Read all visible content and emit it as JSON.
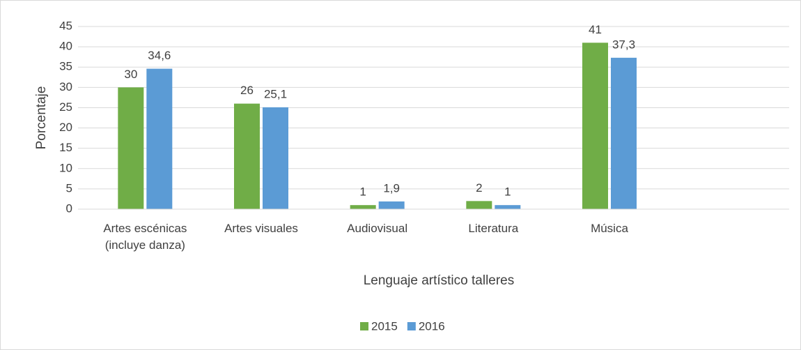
{
  "chart_data": {
    "type": "bar",
    "x_label": "Lenguaje artístico talleres",
    "y_label": "Porcentaje",
    "categories": [
      "Artes escénicas (incluye danza)",
      "Artes visuales",
      "Audiovisual",
      "Literatura",
      "Música",
      null
    ],
    "series": [
      {
        "name": "2015",
        "color": "#70ad47",
        "values": [
          30,
          26,
          1,
          2,
          41,
          null
        ],
        "value_labels": [
          "30",
          "26",
          "1",
          "2",
          "41",
          null
        ]
      },
      {
        "name": "2016",
        "color": "#5b9bd5",
        "values": [
          34.6,
          25.1,
          1.9,
          1,
          37.3,
          null
        ],
        "value_labels": [
          "34,6",
          "25,1",
          "1,9",
          "1",
          "37,3",
          null
        ]
      }
    ],
    "ylim": [
      0,
      45
    ],
    "yticks": [
      0,
      5,
      10,
      15,
      20,
      25,
      30,
      35,
      40,
      45
    ],
    "grid": true,
    "legend": "bottom"
  }
}
